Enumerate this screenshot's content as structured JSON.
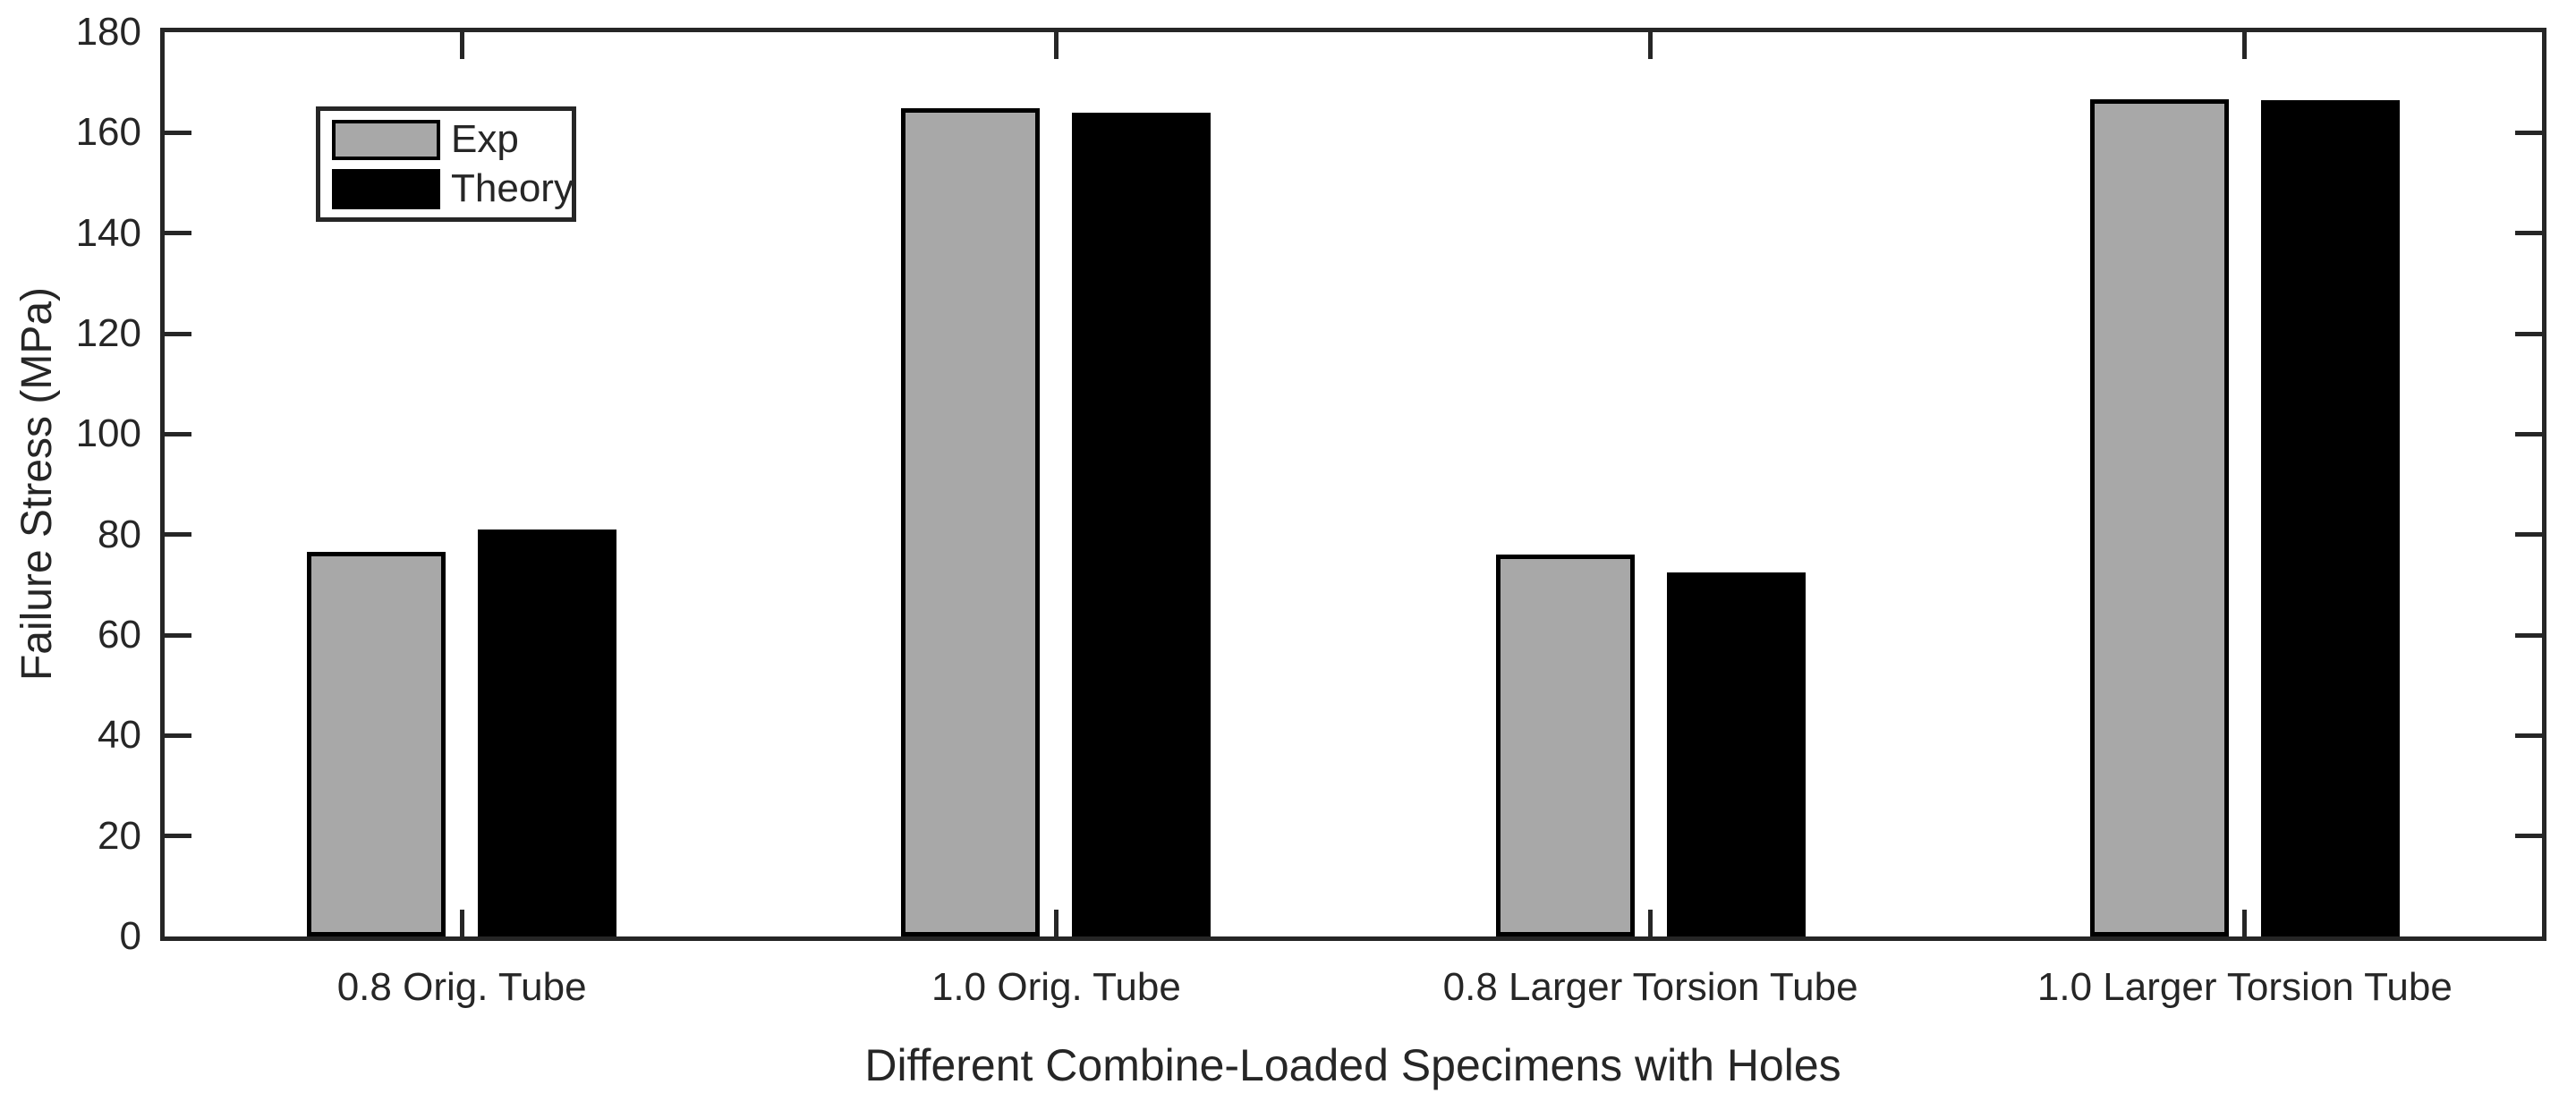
{
  "figure": {
    "background": "#ffffff",
    "axis_color": "#262626",
    "text_color": "#262626"
  },
  "chart_data": {
    "type": "bar",
    "title": "",
    "xlabel": "Different Combine-Loaded Specimens with Holes",
    "ylabel": "Failure Stress (MPa)",
    "categories": [
      "0.8 Orig. Tube",
      "1.0 Orig. Tube",
      "0.8 Larger Torsion Tube",
      "1.0 Larger Torsion Tube"
    ],
    "series": [
      {
        "name": "Exp",
        "fill": "#A8A8A8",
        "edge": "#000000",
        "values": [
          76.5,
          164.8,
          76.0,
          166.7
        ]
      },
      {
        "name": "Theory",
        "fill": "#000000",
        "edge": "#000000",
        "values": [
          81.0,
          164.0,
          72.5,
          166.4
        ]
      }
    ],
    "ylim": [
      0,
      180
    ],
    "ytick_step": 20,
    "yticks": [
      0,
      20,
      40,
      60,
      80,
      100,
      120,
      140,
      160,
      180
    ],
    "grid": false,
    "legend_position": "upper-left-inside"
  }
}
